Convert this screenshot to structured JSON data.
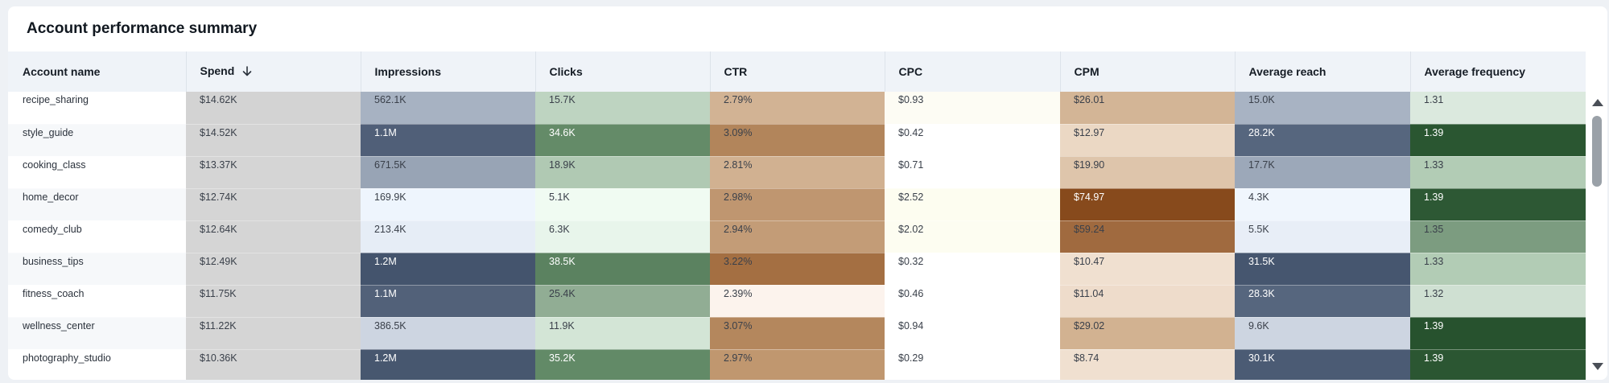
{
  "title": "Account performance summary",
  "columns": [
    {
      "key": "account",
      "label": "Account name"
    },
    {
      "key": "spend",
      "label": "Spend",
      "sorted": "descending"
    },
    {
      "key": "impressions",
      "label": "Impressions"
    },
    {
      "key": "clicks",
      "label": "Clicks"
    },
    {
      "key": "ctr",
      "label": "CTR"
    },
    {
      "key": "cpc",
      "label": "CPC"
    },
    {
      "key": "cpm",
      "label": "CPM"
    },
    {
      "key": "reach",
      "label": "Average reach"
    },
    {
      "key": "frequency",
      "label": "Average frequency"
    }
  ],
  "rows": [
    {
      "account": "recipe_sharing",
      "spend": "$14.62K",
      "impressions": "562.1K",
      "clicks": "15.7K",
      "ctr": "2.79%",
      "cpc": "$0.93",
      "cpm": "$26.01",
      "reach": "15.0K",
      "frequency": "1.31",
      "colors": {
        "spend": "#d3d3d3",
        "impressions": "#a7b2c2",
        "clicks": "#bed4c1",
        "ctr": "#d2b394",
        "cpc": "#fdfcf4",
        "cpm": "#d3b596",
        "reach": "#a8b3c3",
        "frequency": "#dbe9de"
      }
    },
    {
      "account": "style_guide",
      "spend": "$14.52K",
      "impressions": "1.1M",
      "clicks": "34.6K",
      "ctr": "3.09%",
      "cpc": "$0.42",
      "cpm": "$12.97",
      "reach": "28.2K",
      "frequency": "1.39",
      "colors": {
        "spend": "#d4d4d4",
        "impressions": "#505f78",
        "clicks": "#648b68",
        "ctr": "#b2855b",
        "cpc": "#ffffff",
        "cpm": "#ebd8c4",
        "reach": "#56667e",
        "frequency": "#2a5631"
      }
    },
    {
      "account": "cooking_class",
      "spend": "$13.37K",
      "impressions": "671.5K",
      "clicks": "18.9K",
      "ctr": "2.81%",
      "cpc": "$0.71",
      "cpm": "$19.90",
      "reach": "17.7K",
      "frequency": "1.33",
      "colors": {
        "spend": "#d5d5d5",
        "impressions": "#98a4b5",
        "clicks": "#b0c9b3",
        "ctr": "#d1b191",
        "cpc": "#ffffff",
        "cpm": "#dec5ab",
        "reach": "#9ca8b9",
        "frequency": "#b2ccb5"
      }
    },
    {
      "account": "home_decor",
      "spend": "$12.74K",
      "impressions": "169.9K",
      "clicks": "5.1K",
      "ctr": "2.98%",
      "cpc": "$2.52",
      "cpm": "$74.97",
      "reach": "4.3K",
      "frequency": "1.39",
      "colors": {
        "spend": "#d5d5d5",
        "impressions": "#eef5fd",
        "clicks": "#f0fbf2",
        "ctr": "#bf9670",
        "cpc": "#fdfdf0",
        "cpm": "#874a1c",
        "reach": "#f0f6fd",
        "frequency": "#2d5834"
      }
    },
    {
      "account": "comedy_club",
      "spend": "$12.64K",
      "impressions": "213.4K",
      "clicks": "6.3K",
      "ctr": "2.94%",
      "cpc": "$2.02",
      "cpm": "$59.24",
      "reach": "5.5K",
      "frequency": "1.35",
      "colors": {
        "spend": "#d5d5d5",
        "impressions": "#e6edf6",
        "clicks": "#e8f5eb",
        "ctr": "#c39c77",
        "cpc": "#fdfdf1",
        "cpm": "#a06a3f",
        "reach": "#e8eef7",
        "frequency": "#7c9c80"
      }
    },
    {
      "account": "business_tips",
      "spend": "$12.49K",
      "impressions": "1.2M",
      "clicks": "38.5K",
      "ctr": "3.22%",
      "cpc": "$0.32",
      "cpm": "$10.47",
      "reach": "31.5K",
      "frequency": "1.33",
      "colors": {
        "spend": "#d5d5d5",
        "impressions": "#44546d",
        "clicks": "#5b8260",
        "ctr": "#a46f42",
        "cpc": "#ffffff",
        "cpm": "#f0e0d0",
        "reach": "#46566f",
        "frequency": "#b2ccb5"
      }
    },
    {
      "account": "fitness_coach",
      "spend": "$11.75K",
      "impressions": "1.1M",
      "clicks": "25.4K",
      "ctr": "2.39%",
      "cpc": "$0.46",
      "cpm": "$11.04",
      "reach": "28.3K",
      "frequency": "1.32",
      "colors": {
        "spend": "#d5d5d5",
        "impressions": "#526179",
        "clicks": "#91ad94",
        "ctr": "#fcf3ed",
        "cpc": "#ffffff",
        "cpm": "#eedccb",
        "reach": "#56667e",
        "frequency": "#cfe0d2"
      }
    },
    {
      "account": "wellness_center",
      "spend": "$11.22K",
      "impressions": "386.5K",
      "clicks": "11.9K",
      "ctr": "3.07%",
      "cpc": "$0.94",
      "cpm": "$29.02",
      "reach": "9.6K",
      "frequency": "1.39",
      "colors": {
        "spend": "#d5d5d5",
        "impressions": "#cdd5e1",
        "clicks": "#d3e5d6",
        "ctr": "#b4875d",
        "cpc": "#ffffff",
        "cpm": "#d2b291",
        "reach": "#cdd5e1",
        "frequency": "#27522e"
      }
    },
    {
      "account": "photography_studio",
      "spend": "$10.36K",
      "impressions": "1.2M",
      "clicks": "35.2K",
      "ctr": "2.97%",
      "cpc": "$0.29",
      "cpm": "$8.74",
      "reach": "30.1K",
      "frequency": "1.39",
      "colors": {
        "spend": "#d5d5d5",
        "impressions": "#47576f",
        "clicks": "#628a67",
        "ctr": "#c0976f",
        "cpc": "#ffffff",
        "cpm": "#f0e0d0",
        "reach": "#4b5b74",
        "frequency": "#2b5632"
      }
    }
  ],
  "dark_cells": {
    "style_guide": [
      "impressions",
      "clicks",
      "reach",
      "frequency"
    ],
    "home_decor": [
      "cpm",
      "frequency"
    ],
    "business_tips": [
      "impressions",
      "clicks",
      "reach"
    ],
    "fitness_coach": [
      "impressions",
      "reach"
    ],
    "wellness_center": [
      "frequency"
    ],
    "photography_studio": [
      "impressions",
      "clicks",
      "reach",
      "frequency"
    ]
  },
  "icons": {
    "sort": "arrow-down-icon",
    "scroll_up": "triangle-up-icon",
    "scroll_down": "triangle-down-icon"
  }
}
